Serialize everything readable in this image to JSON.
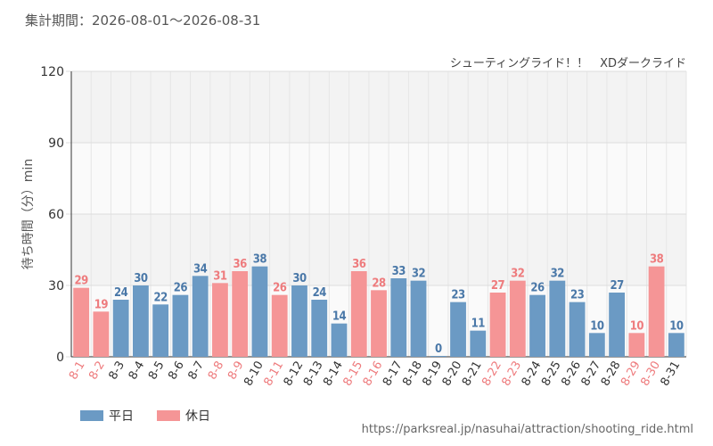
{
  "header": {
    "period": "集計期間：2026-08-01～2026-08-31",
    "subtitle": "シューティングライド！！　XDダークライド"
  },
  "legend": {
    "weekday": "平日",
    "holiday": "休日"
  },
  "source": "https://parksreal.jp/nasuhai/attraction/shooting_ride.html",
  "colors": {
    "weekday": "#6b9ac4",
    "holiday": "#f59596",
    "weekday_label": "#4a78a8",
    "holiday_label": "#ee7b7d"
  },
  "chart_data": {
    "type": "bar",
    "title": "",
    "xlabel": "",
    "ylabel": "待ち時間（分）min",
    "ylim": [
      0,
      120
    ],
    "yticks": [
      0,
      30,
      60,
      90,
      120
    ],
    "grid": true,
    "legend_position": "bottom-left",
    "categories": [
      "8-1",
      "8-2",
      "8-3",
      "8-4",
      "8-5",
      "8-6",
      "8-7",
      "8-8",
      "8-9",
      "8-10",
      "8-11",
      "8-12",
      "8-13",
      "8-14",
      "8-15",
      "8-16",
      "8-17",
      "8-18",
      "8-19",
      "8-20",
      "8-21",
      "8-22",
      "8-23",
      "8-24",
      "8-25",
      "8-26",
      "8-27",
      "8-28",
      "8-29",
      "8-30",
      "8-31"
    ],
    "values": [
      29,
      19,
      24,
      30,
      22,
      26,
      34,
      31,
      36,
      38,
      26,
      30,
      24,
      14,
      36,
      28,
      33,
      32,
      0,
      23,
      11,
      27,
      32,
      26,
      32,
      23,
      10,
      27,
      10,
      38,
      10
    ],
    "day_type": [
      "holiday",
      "holiday",
      "weekday",
      "weekday",
      "weekday",
      "weekday",
      "weekday",
      "holiday",
      "holiday",
      "weekday",
      "holiday",
      "weekday",
      "weekday",
      "weekday",
      "holiday",
      "holiday",
      "weekday",
      "weekday",
      "weekday",
      "weekday",
      "weekday",
      "holiday",
      "holiday",
      "weekday",
      "weekday",
      "weekday",
      "weekday",
      "weekday",
      "holiday",
      "holiday",
      "weekday"
    ]
  }
}
